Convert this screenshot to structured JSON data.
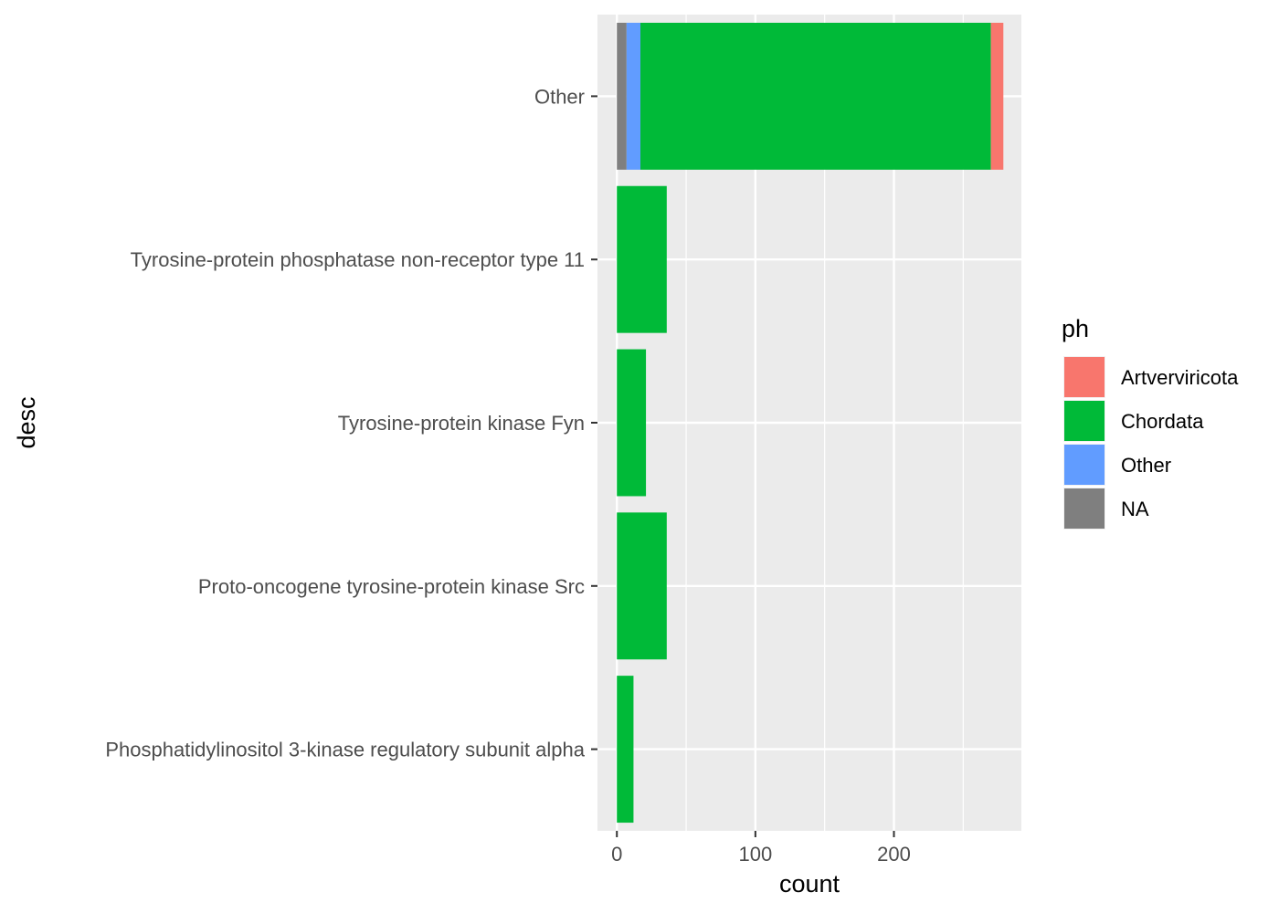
{
  "chart_data": {
    "type": "bar",
    "orientation": "horizontal",
    "stacked": true,
    "xlabel": "count",
    "ylabel": "desc",
    "xlim": [
      -14,
      292
    ],
    "xticks": [
      0,
      100,
      200
    ],
    "grid": true,
    "legend": {
      "title": "ph",
      "position": "right"
    },
    "categories": [
      "Other",
      "Tyrosine-protein phosphatase non-receptor type 11",
      "Tyrosine-protein kinase Fyn",
      "Proto-oncogene tyrosine-protein kinase Src",
      "Phosphatidylinositol 3-kinase regulatory subunit alpha"
    ],
    "series": [
      {
        "name": "NA",
        "color": "#7F7F7F",
        "values": [
          7,
          0,
          0,
          0,
          0
        ]
      },
      {
        "name": "Other",
        "color": "#619CFF",
        "values": [
          10,
          0,
          0,
          0,
          0
        ]
      },
      {
        "name": "Chordata",
        "color": "#00BA38",
        "values": [
          253,
          36,
          21,
          36,
          12
        ]
      },
      {
        "name": "Artverviricota",
        "color": "#F8766D",
        "values": [
          9,
          0,
          0,
          0,
          0
        ]
      }
    ],
    "legend_order": [
      "Artverviricota",
      "Chordata",
      "Other",
      "NA"
    ]
  }
}
